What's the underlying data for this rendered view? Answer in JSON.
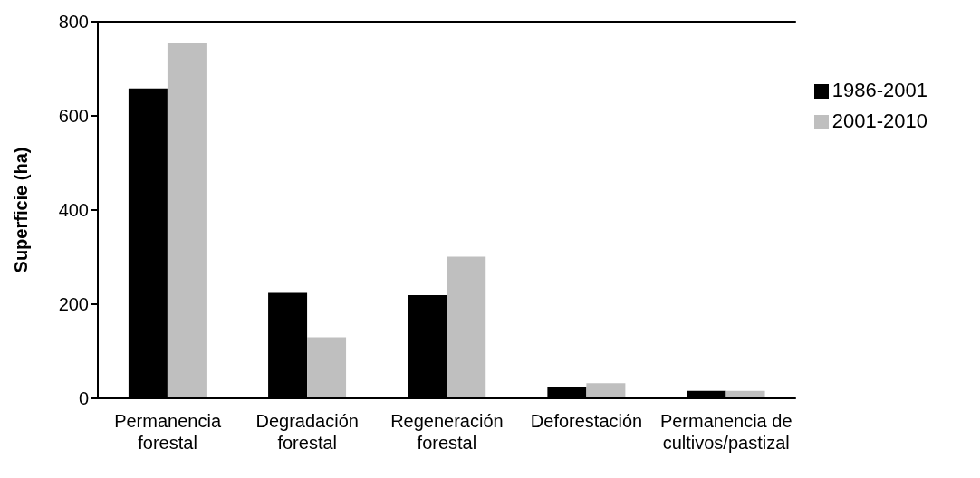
{
  "chart_data": {
    "type": "bar",
    "ylabel": "Superficie (ha)",
    "categories": [
      "Permanencia forestal",
      "Degradación forestal",
      "Regeneración forestal",
      "Deforestación",
      "Permanencia de cultivos/pastizal"
    ],
    "series": [
      {
        "name": "1986-2001",
        "color": "#000000",
        "values": [
          658,
          224,
          219,
          24,
          16
        ]
      },
      {
        "name": "2001-2010",
        "color": "#bfbfbf",
        "values": [
          755,
          130,
          301,
          32,
          16
        ]
      }
    ],
    "ylim": [
      0,
      800
    ],
    "yticks": [
      0,
      200,
      400,
      600,
      800
    ],
    "grid": false,
    "legend": "top right"
  }
}
